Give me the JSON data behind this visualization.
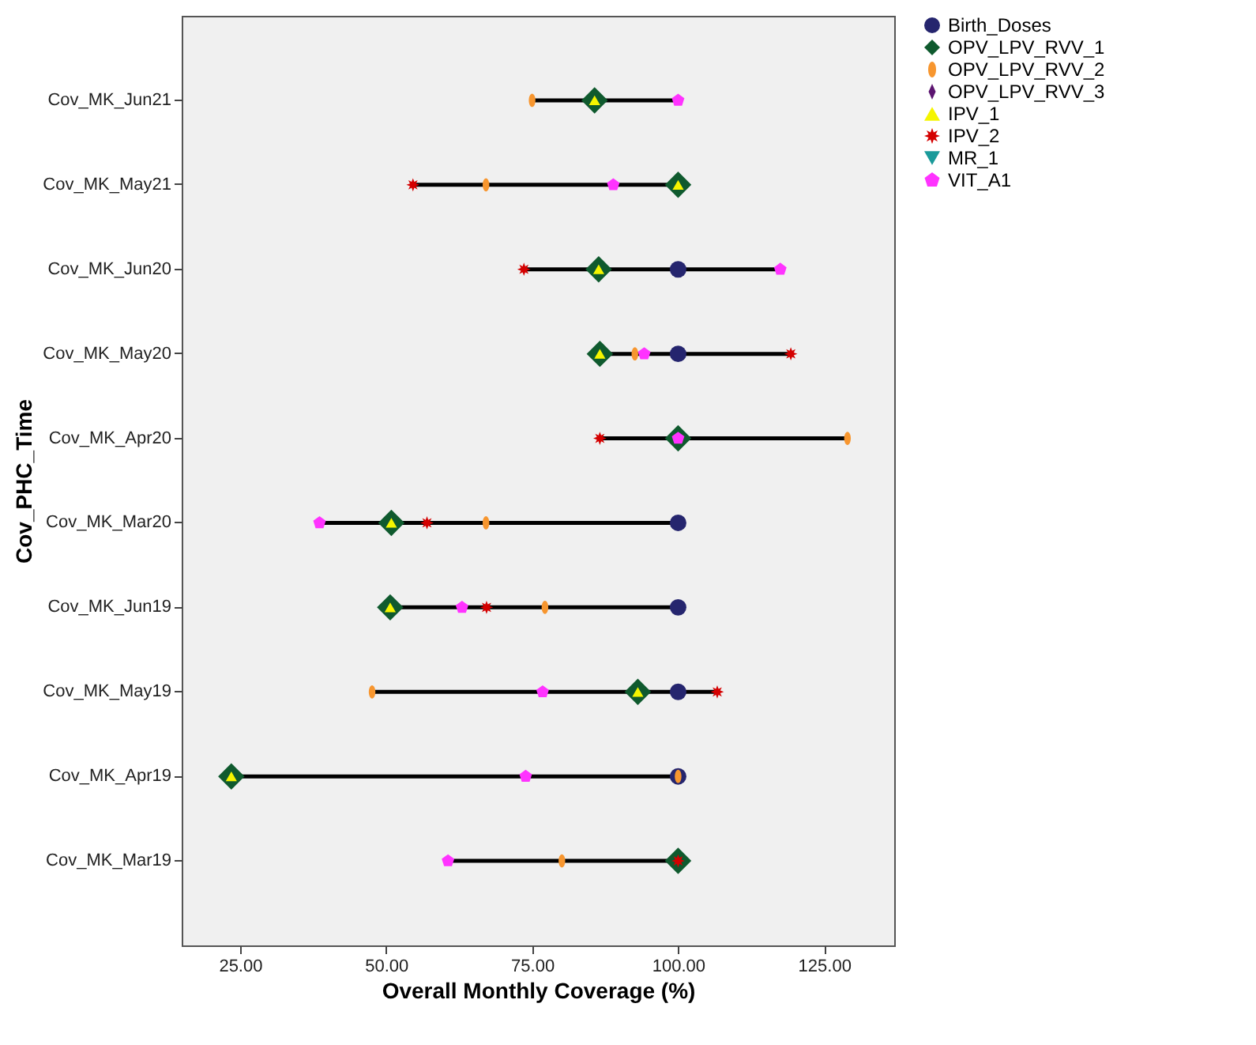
{
  "chart_data": {
    "type": "scatter",
    "xlabel": "Overall Monthly Coverage (%)",
    "ylabel": "Cov_PHC_Time",
    "categories": [
      "Cov_MK_Jun21",
      "Cov_MK_May21",
      "Cov_MK_Jun20",
      "Cov_MK_May20",
      "Cov_MK_Apr20",
      "Cov_MK_Mar20",
      "Cov_MK_Jun19",
      "Cov_MK_May19",
      "Cov_MK_Apr19",
      "Cov_MK_Mar19"
    ],
    "orientation": "horizontal",
    "xlim": [
      15,
      137
    ],
    "xticks": [
      {
        "value": 25,
        "label": "25.00"
      },
      {
        "value": 50,
        "label": "50.00"
      },
      {
        "value": 75,
        "label": "75.00"
      },
      {
        "value": 100,
        "label": "100.00"
      },
      {
        "value": 125,
        "label": "125.00"
      }
    ],
    "grid": false,
    "legend": "top right",
    "series": [
      {
        "name": "Birth_Doses",
        "color": "#25256e",
        "values": [
          null,
          null,
          100,
          100,
          null,
          100,
          100,
          100,
          100,
          null
        ]
      },
      {
        "name": "OPV_LPV_RVV_1",
        "color": "#0f5a2e",
        "values": [
          85.7,
          100,
          86.4,
          86.6,
          100,
          50.9,
          50.7,
          93.1,
          23.5,
          100
        ]
      },
      {
        "name": "OPV_LPV_RVV_2",
        "color": "#f7962f",
        "values": [
          75,
          67.1,
          null,
          92.6,
          129,
          67.1,
          77.2,
          47.6,
          100,
          80.1
        ]
      },
      {
        "name": "OPV_LPV_RVV_3",
        "color": "#5c1570",
        "values": [
          null,
          null,
          null,
          null,
          null,
          null,
          null,
          null,
          null,
          null
        ]
      },
      {
        "name": "IPV_1",
        "color": "#f5f500",
        "values": [
          85.7,
          100,
          86.4,
          86.6,
          null,
          50.9,
          50.7,
          93.1,
          23.5,
          null
        ]
      },
      {
        "name": "IPV_2",
        "color": "#d40000",
        "values": [
          null,
          54.6,
          73.6,
          119.3,
          86.6,
          57,
          67.2,
          106.7,
          null,
          100
        ]
      },
      {
        "name": "MR_1",
        "color": "#1a9a9a",
        "values": [
          null,
          null,
          null,
          null,
          null,
          null,
          null,
          null,
          null,
          null
        ]
      },
      {
        "name": "VIT_A1",
        "color": "#ff33ff",
        "values": [
          100,
          88.9,
          117.5,
          94.2,
          100,
          38.6,
          63,
          76.8,
          73.9,
          60.6
        ]
      }
    ]
  }
}
